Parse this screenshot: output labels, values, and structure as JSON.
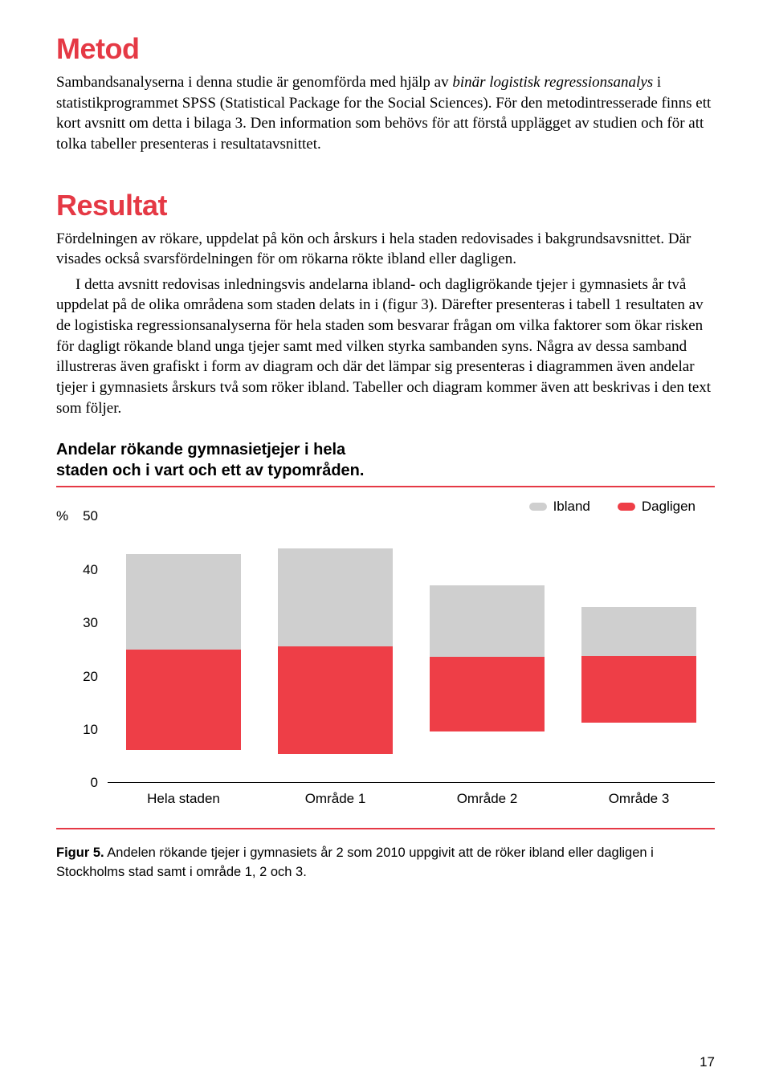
{
  "colors": {
    "heading_red": "#e53945",
    "body_text": "#000000",
    "rule_red": "#e53945",
    "bar_ibland": "#cfcfcf",
    "bar_dagligen": "#ee3e47",
    "background": "#ffffff"
  },
  "metod": {
    "heading": "Metod",
    "p1_a": "Sambandsanalyserna i denna studie är genomförda med hjälp av ",
    "p1_italic": "binär logistisk regressionsanalys",
    "p1_b": " i statistikprogrammet SPSS (Statistical Package for the Social Sciences). För den metodintresserade finns ett kort avsnitt om detta i bilaga 3. Den information som behövs för att förstå upplägget av studien och för att tolka tabeller presenteras i resultatavsnittet."
  },
  "resultat": {
    "heading": "Resultat",
    "p1": "Fördelningen av rökare, uppdelat på kön och årskurs i hela staden redovisades i bakgrundsavsnittet. Där visades också svarsfördelningen för om rökarna rökte ibland eller dagligen.",
    "p2": "I detta avsnitt redovisas inledningsvis andelarna ibland- och dagligrökande tjejer i gymnasiets år två uppdelat på de olika områdena som staden delats in i (figur 3). Därefter presenteras i tabell 1 resultaten av de logistiska regressionsanalyserna för hela staden som besvarar frågan om vilka faktorer som ökar risken för dagligt rökande bland unga tjejer samt med vilken styrka sambanden syns. Några av dessa samband illustreras även grafiskt i form av diagram och där det lämpar sig presenteras i diagrammen även andelar tjejer i gymnasiets årskurs två som röker ibland. Tabeller och diagram kommer även att beskrivas i den text som följer."
  },
  "chart": {
    "title_l1": "Andelar rökande gymnasietjejer i hela",
    "title_l2": "staden och i vart och ett av typområden.",
    "type": "stacked-bar",
    "legend": {
      "ibland": "Ibland",
      "dagligen": "Dagligen"
    },
    "y": {
      "unit": "%",
      "max": 50,
      "ticks": [
        0,
        10,
        20,
        30,
        40,
        50
      ]
    },
    "categories": [
      "Hela staden",
      "Område 1",
      "Område 2",
      "Område 3"
    ],
    "series": {
      "dagligen": [
        22,
        23,
        19,
        19
      ],
      "ibland": [
        21,
        21,
        18,
        14
      ]
    },
    "bar_colors": {
      "dagligen": "#ee3e47",
      "ibland": "#cfcfcf"
    },
    "label_fontsize": 17,
    "title_fontsize": 20
  },
  "caption": {
    "bold": "Figur 5.",
    "rest": " Andelen rökande tjejer i gymnasiets år 2 som 2010 uppgivit att de röker ibland eller dagligen i Stockholms stad samt i område 1, 2 och 3."
  },
  "page_number": "17"
}
